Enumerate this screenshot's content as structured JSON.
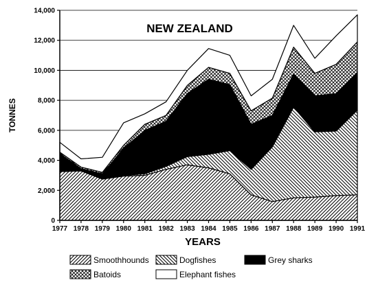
{
  "chart_data": {
    "type": "area",
    "stacked": true,
    "title": "NEW ZEALAND",
    "xlabel": "YEARS",
    "ylabel": "TONNES",
    "x": [
      "1977",
      "1978",
      "1979",
      "1980",
      "1981",
      "1982",
      "1983",
      "1984",
      "1985",
      "1986",
      "1987",
      "1988",
      "1989",
      "1990",
      "1991"
    ],
    "ylim": [
      0,
      14000
    ],
    "yticks": [
      "0",
      "2,000",
      "4,000",
      "6,000",
      "8,000",
      "10,000",
      "12,000",
      "14,000"
    ],
    "grid": true,
    "legend_position": "bottom",
    "series": [
      {
        "name": "Smoothhounds",
        "pattern": "hatch-right",
        "values": [
          3250,
          3300,
          2750,
          2950,
          3000,
          3400,
          3700,
          3500,
          3100,
          1700,
          1250,
          1500,
          1550,
          1650,
          1700
        ]
      },
      {
        "name": "Dogfishes",
        "pattern": "hatch-left",
        "values": [
          0,
          0,
          50,
          50,
          100,
          200,
          550,
          900,
          1550,
          1700,
          3650,
          6050,
          4350,
          4300,
          5650
        ]
      },
      {
        "name": "Grey sharks",
        "pattern": "solid-black",
        "values": [
          1200,
          150,
          300,
          1800,
          2900,
          3000,
          4200,
          5000,
          4400,
          3000,
          2100,
          2200,
          2400,
          2500,
          2500
        ]
      },
      {
        "name": "Batoids",
        "pattern": "crosshatch",
        "values": [
          100,
          100,
          100,
          200,
          400,
          400,
          550,
          800,
          750,
          900,
          1150,
          1800,
          1500,
          1950,
          2050
        ]
      },
      {
        "name": "Elephant fishes",
        "pattern": "blank",
        "values": [
          650,
          550,
          1000,
          1500,
          700,
          900,
          1000,
          1250,
          1200,
          1000,
          1250,
          1450,
          1000,
          1900,
          1800
        ]
      }
    ]
  }
}
